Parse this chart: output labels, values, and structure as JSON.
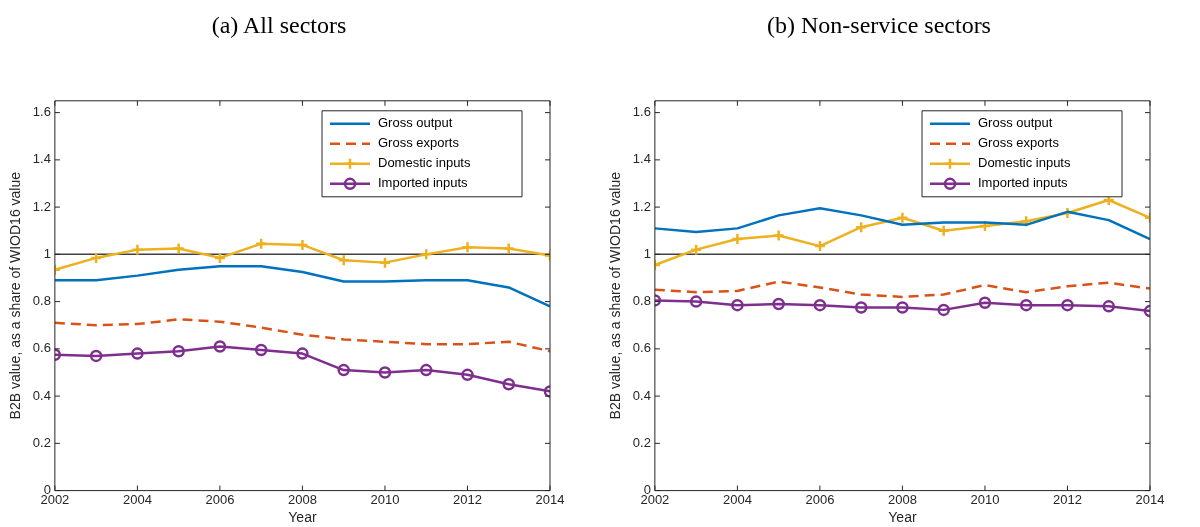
{
  "chart_data": [
    {
      "type": "line",
      "title": "(a) All sectors",
      "xlabel": "Year",
      "ylabel": "B2B value, as a share of WIOD16 value",
      "x": [
        2002,
        2003,
        2004,
        2005,
        2006,
        2007,
        2008,
        2009,
        2010,
        2011,
        2012,
        2013,
        2014
      ],
      "xlim": [
        2002,
        2014
      ],
      "xticks": [
        2002,
        2004,
        2006,
        2008,
        2010,
        2012,
        2014
      ],
      "ylim": [
        0,
        1.65
      ],
      "yticks": [
        0,
        0.2,
        0.4,
        0.6,
        0.8,
        1,
        1.2,
        1.4,
        1.6
      ],
      "grid": false,
      "legend": "top right",
      "ref_lines": [
        {
          "axis": "y",
          "value": 1,
          "color": "#404040"
        }
      ],
      "series": [
        {
          "name": "Gross output",
          "color": "#0072bd",
          "marker": "none",
          "line_style": "solid",
          "values": [
            0.89,
            0.89,
            0.91,
            0.935,
            0.95,
            0.95,
            0.925,
            0.885,
            0.885,
            0.89,
            0.89,
            0.86,
            0.78
          ]
        },
        {
          "name": "Gross exports",
          "color": "#d95319",
          "marker": "none",
          "line_style": "dashed",
          "values": [
            0.71,
            0.7,
            0.705,
            0.725,
            0.715,
            0.69,
            0.66,
            0.64,
            0.63,
            0.62,
            0.62,
            0.63,
            0.59
          ]
        },
        {
          "name": "Domestic inputs",
          "color": "#edb120",
          "marker": "cross",
          "line_style": "solid",
          "values": [
            0.935,
            0.985,
            1.02,
            1.025,
            0.985,
            1.045,
            1.04,
            0.975,
            0.965,
            1.0,
            1.03,
            1.025,
            0.995
          ]
        },
        {
          "name": "Imported inputs",
          "color": "#7e2f8e",
          "marker": "circle",
          "line_style": "solid",
          "values": [
            0.575,
            0.57,
            0.58,
            0.59,
            0.61,
            0.595,
            0.58,
            0.51,
            0.5,
            0.51,
            0.49,
            0.45,
            0.42
          ]
        }
      ]
    },
    {
      "type": "line",
      "title": "(b) Non-service sectors",
      "xlabel": "Year",
      "ylabel": "B2B value, as a share of WIOD16 value",
      "x": [
        2002,
        2003,
        2004,
        2005,
        2006,
        2007,
        2008,
        2009,
        2010,
        2011,
        2012,
        2013,
        2014
      ],
      "xlim": [
        2002,
        2014
      ],
      "xticks": [
        2002,
        2004,
        2006,
        2008,
        2010,
        2012,
        2014
      ],
      "ylim": [
        0,
        1.65
      ],
      "yticks": [
        0,
        0.2,
        0.4,
        0.6,
        0.8,
        1,
        1.2,
        1.4,
        1.6
      ],
      "grid": false,
      "legend": "top right",
      "ref_lines": [
        {
          "axis": "y",
          "value": 1,
          "color": "#404040"
        }
      ],
      "series": [
        {
          "name": "Gross output",
          "color": "#0072bd",
          "marker": "none",
          "line_style": "solid",
          "values": [
            1.11,
            1.095,
            1.11,
            1.165,
            1.195,
            1.165,
            1.125,
            1.135,
            1.135,
            1.125,
            1.18,
            1.145,
            1.065
          ]
        },
        {
          "name": "Gross exports",
          "color": "#d95319",
          "marker": "none",
          "line_style": "dashed",
          "values": [
            0.85,
            0.84,
            0.845,
            0.885,
            0.86,
            0.83,
            0.82,
            0.83,
            0.87,
            0.84,
            0.865,
            0.88,
            0.855
          ]
        },
        {
          "name": "Domestic inputs",
          "color": "#edb120",
          "marker": "cross",
          "line_style": "solid",
          "values": [
            0.955,
            1.02,
            1.065,
            1.08,
            1.035,
            1.115,
            1.155,
            1.1,
            1.12,
            1.14,
            1.175,
            1.23,
            1.155
          ]
        },
        {
          "name": "Imported inputs",
          "color": "#7e2f8e",
          "marker": "circle",
          "line_style": "solid",
          "values": [
            0.805,
            0.8,
            0.785,
            0.79,
            0.785,
            0.775,
            0.775,
            0.765,
            0.795,
            0.785,
            0.785,
            0.78,
            0.76
          ]
        }
      ]
    }
  ]
}
